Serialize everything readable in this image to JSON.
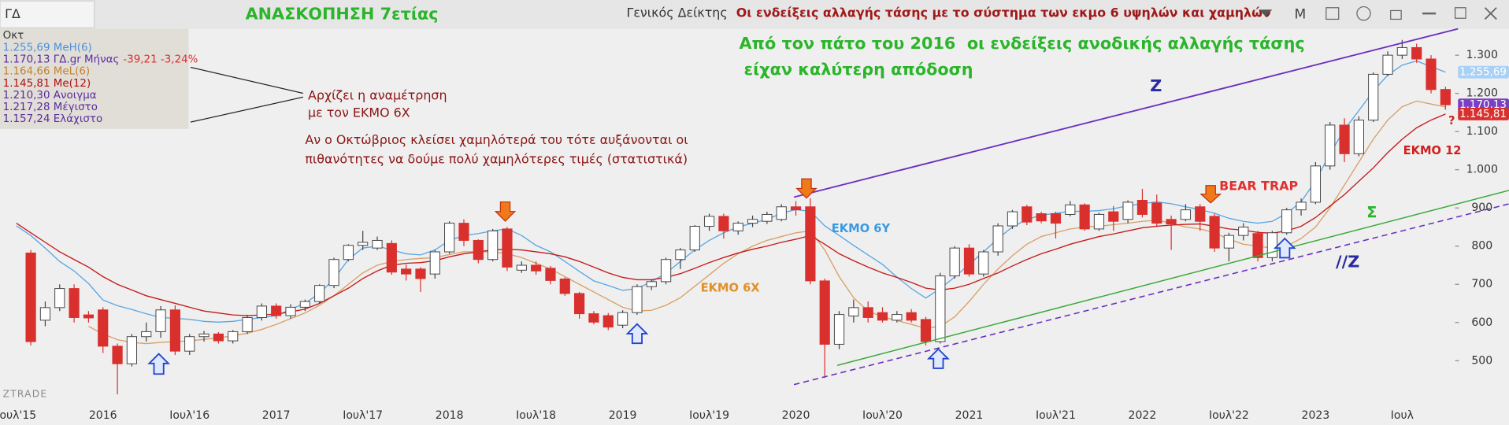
{
  "toolbar": {
    "symbol": "ΓΔ",
    "title": "ΑΝΑΣΚΟΠΗΣΗ 7ετίας",
    "index_name": "Γενικός Δείκτης",
    "subtitle": "Οι ενδείξεις αλλαγής τάσης με το σύστημα των εκμο 6 υψηλών και χαμηλών",
    "mode": "M"
  },
  "chart_data": {
    "type": "candlestick",
    "categories": [
      "Ιουλ'15",
      null,
      null,
      null,
      null,
      null,
      "2016",
      null,
      null,
      null,
      null,
      null,
      "Ιουλ'16",
      null,
      null,
      null,
      null,
      null,
      "2017",
      null,
      null,
      null,
      null,
      null,
      "Ιουλ'17",
      null,
      null,
      null,
      null,
      null,
      "2018",
      null,
      null,
      null,
      null,
      null,
      "Ιουλ'18",
      null,
      null,
      null,
      null,
      null,
      "2019",
      null,
      null,
      null,
      null,
      null,
      "Ιουλ'19",
      null,
      null,
      null,
      null,
      null,
      "2020",
      null,
      null,
      null,
      null,
      null,
      "Ιουλ'20",
      null,
      null,
      null,
      null,
      null,
      "2021",
      null,
      null,
      null,
      null,
      null,
      "Ιουλ'21",
      null,
      null,
      null,
      null,
      null,
      "2022",
      null,
      null,
      null,
      null,
      null,
      "Ιουλ'22",
      null,
      null,
      null,
      null,
      null,
      "2023",
      null,
      null,
      null,
      null,
      null,
      "Ιουλ",
      null,
      null,
      null
    ],
    "open": [
      null,
      782,
      606,
      639,
      689,
      620,
      633,
      538,
      492,
      563,
      576,
      633,
      525,
      563,
      570,
      552,
      576,
      613,
      643,
      618,
      640,
      655,
      697,
      765,
      802,
      795,
      807,
      740,
      740,
      727,
      785,
      860,
      815,
      765,
      845,
      737,
      750,
      742,
      714,
      676,
      623,
      618,
      593,
      626,
      694,
      707,
      765,
      790,
      852,
      878,
      840,
      860,
      865,
      870,
      903,
      903,
      709,
      543,
      617,
      639,
      626,
      606,
      626,
      608,
      550,
      722,
      795,
      727,
      785,
      853,
      903,
      885,
      885,
      883,
      908,
      845,
      890,
      870,
      920,
      913,
      870,
      870,
      903,
      878,
      795,
      828,
      833,
      770,
      835,
      895,
      915,
      1010,
      1117,
      1042,
      1130,
      1250,
      1300,
      1320,
      1290,
      1210.3
    ],
    "high": [
      null,
      790,
      655,
      700,
      700,
      630,
      640,
      545,
      570,
      600,
      643,
      645,
      570,
      578,
      575,
      580,
      620,
      650,
      650,
      648,
      660,
      700,
      770,
      805,
      840,
      825,
      815,
      752,
      745,
      790,
      865,
      870,
      818,
      845,
      850,
      760,
      760,
      748,
      718,
      680,
      630,
      625,
      632,
      700,
      712,
      770,
      795,
      855,
      885,
      885,
      865,
      880,
      890,
      910,
      918,
      925,
      715,
      630,
      660,
      655,
      640,
      630,
      635,
      615,
      730,
      800,
      805,
      790,
      860,
      895,
      908,
      890,
      890,
      918,
      912,
      888,
      905,
      920,
      950,
      935,
      880,
      910,
      910,
      885,
      835,
      860,
      840,
      840,
      900,
      925,
      1020,
      1125,
      1135,
      1140,
      1255,
      1310,
      1340,
      1330,
      1300,
      1217.28
    ],
    "low": [
      null,
      540,
      590,
      630,
      600,
      600,
      520,
      412,
      485,
      550,
      560,
      515,
      515,
      550,
      545,
      545,
      570,
      605,
      610,
      610,
      630,
      650,
      690,
      760,
      790,
      790,
      725,
      710,
      680,
      715,
      780,
      800,
      755,
      760,
      735,
      730,
      725,
      700,
      670,
      610,
      595,
      580,
      585,
      620,
      685,
      700,
      740,
      785,
      840,
      820,
      830,
      850,
      858,
      865,
      880,
      700,
      455,
      530,
      600,
      600,
      600,
      600,
      600,
      540,
      545,
      715,
      720,
      720,
      775,
      845,
      855,
      860,
      820,
      878,
      840,
      840,
      840,
      860,
      875,
      850,
      790,
      865,
      840,
      785,
      760,
      815,
      760,
      760,
      830,
      880,
      910,
      1000,
      1020,
      1035,
      1125,
      1245,
      1290,
      1280,
      1200,
      1157.24
    ],
    "close": [
      null,
      550,
      639,
      689,
      613,
      612,
      538,
      492,
      563,
      576,
      633,
      525,
      563,
      570,
      552,
      576,
      613,
      643,
      618,
      640,
      655,
      697,
      765,
      802,
      810,
      815,
      732,
      727,
      715,
      785,
      860,
      815,
      765,
      840,
      745,
      750,
      735,
      710,
      676,
      623,
      601,
      588,
      626,
      694,
      707,
      765,
      790,
      852,
      878,
      840,
      860,
      870,
      883,
      903,
      895,
      709,
      543,
      621,
      639,
      613,
      606,
      621,
      606,
      550,
      722,
      795,
      727,
      785,
      853,
      890,
      863,
      866,
      860,
      908,
      845,
      883,
      865,
      915,
      883,
      860,
      858,
      895,
      865,
      795,
      828,
      850,
      770,
      835,
      895,
      915,
      1010,
      1117,
      1042,
      1130,
      1250,
      1300,
      1320,
      1290,
      1210,
      1170.13
    ],
    "up_color": "#ffffff",
    "down_color": "#d9302e",
    "series": [
      {
        "color": "#5aa7e6",
        "values": [
          853,
          828,
          795,
          760,
          735,
          702,
          659,
          644,
          634,
          623,
          613,
          611,
          608,
          603,
          601,
          603,
          608,
          613,
          618,
          634,
          651,
          676,
          714,
          765,
          795,
          800,
          790,
          780,
          777,
          790,
          815,
          828,
          833,
          840,
          845,
          828,
          802,
          785,
          760,
          734,
          709,
          697,
          684,
          689,
          707,
          729,
          760,
          790,
          815,
          835,
          850,
          860,
          870,
          886,
          896,
          891,
          853,
          828,
          802,
          777,
          752,
          719,
          689,
          664,
          689,
          719,
          752,
          785,
          820,
          850,
          870,
          881,
          886,
          891,
          891,
          893,
          898,
          906,
          911,
          916,
          911,
          903,
          896,
          886,
          873,
          865,
          860,
          865,
          886,
          916,
          971,
          1042,
          1105,
          1155,
          1206,
          1248,
          1274,
          1285,
          1270,
          1255.69
        ]
      },
      {
        "color": "#d9a066",
        "values": [
          null,
          null,
          null,
          null,
          null,
          590,
          570,
          555,
          548,
          545,
          548,
          550,
          552,
          556,
          560,
          565,
          572,
          582,
          595,
          610,
          625,
          645,
          670,
          700,
          730,
          750,
          760,
          765,
          768,
          770,
          778,
          785,
          785,
          785,
          780,
          770,
          755,
          740,
          720,
          700,
          680,
          660,
          640,
          630,
          632,
          645,
          665,
          695,
          725,
          755,
          780,
          800,
          815,
          825,
          835,
          840,
          790,
          720,
          665,
          630,
          615,
          605,
          595,
          585,
          590,
          615,
          655,
          700,
          740,
          775,
          805,
          825,
          835,
          845,
          850,
          852,
          856,
          860,
          865,
          868,
          860,
          850,
          845,
          835,
          818,
          805,
          800,
          795,
          800,
          820,
          850,
          900,
          960,
          1020,
          1080,
          1130,
          1165,
          1180,
          1172,
          1164.66
        ]
      },
      {
        "color": "#c41a1a",
        "values": [
          860,
          835,
          810,
          785,
          765,
          745,
          720,
          700,
          685,
          670,
          660,
          650,
          640,
          630,
          625,
          620,
          618,
          620,
          622,
          628,
          635,
          650,
          670,
          690,
          715,
          735,
          750,
          755,
          757,
          762,
          772,
          780,
          785,
          790,
          792,
          790,
          785,
          780,
          772,
          760,
          745,
          730,
          718,
          712,
          712,
          718,
          728,
          742,
          757,
          770,
          782,
          792,
          800,
          810,
          818,
          828,
          805,
          780,
          762,
          745,
          730,
          718,
          705,
          690,
          685,
          690,
          700,
          715,
          730,
          748,
          765,
          780,
          792,
          805,
          815,
          825,
          832,
          840,
          848,
          852,
          855,
          857,
          858,
          852,
          845,
          842,
          836,
          834,
          840,
          852,
          875,
          905,
          935,
          970,
          1005,
          1045,
          1080,
          1110,
          1130,
          1145.81
        ]
      }
    ],
    "ylim": [
      387,
      1369
    ],
    "yticks": [
      {
        "value": 1300,
        "label": "1.300"
      },
      {
        "value": 1200,
        "label": "1.200"
      },
      {
        "value": 1100,
        "label": "1.100"
      },
      {
        "value": 1000,
        "label": "1.000"
      },
      900,
      800,
      700,
      600,
      500
    ],
    "grid": false,
    "price_tags": [
      {
        "value": 1255.69,
        "label": "1.255,69",
        "color": "#a9d1f5"
      },
      {
        "value": 1170.13,
        "label": "1.170,13",
        "color": "#7b3fc4"
      },
      {
        "value": 1145.81,
        "label": "1.145,81",
        "color": "#d9302e"
      }
    ],
    "legend_rows": [
      [
        {
          "text": "Οκτ",
          "color": "#333333"
        }
      ],
      [
        {
          "text": "1.255,69 MeH(6)",
          "color": "#4a90d9"
        }
      ],
      [
        {
          "text": "1.170,13 ΓΔ.gr Μήνας",
          "color": "#5b2c9f"
        },
        {
          "text": "-39,21 -3,24%",
          "color": "#d9302e"
        }
      ],
      [
        {
          "text": "1.164,66 MeL(6)",
          "color": "#c8802a"
        }
      ],
      [
        {
          "text": "1.145,81 Me(12)",
          "color": "#b01010"
        }
      ],
      [
        {
          "text": "1.210,30 Ανοιγμα",
          "color": "#5b2c9f"
        }
      ],
      [
        {
          "text": "1.217,28 Μέγιστο",
          "color": "#5b2c9f"
        }
      ],
      [
        {
          "text": "1.157,24 Ελάχιστο",
          "color": "#5b2c9f"
        }
      ]
    ],
    "annotations": [
      "Από τον πάτο του 2016  οι ενδείξεις ανοδικής αλλαγής τάσης",
      "είχαν καλύτερη απόδοση",
      "Αρχίζει η αναμέτρηση",
      "με τον ΕΚΜΟ 6Χ",
      "Αν ο Οκτώβριος κλείσει χαμηλότερά του τότε αυξάνονται οι",
      "πιθανότητες να δούμε πολύ χαμηλότερες τιμές (στατιστικά)",
      "Z",
      "//Z",
      "Σ",
      "BEAR TRAP",
      "ΕΚΜΟ 6Υ",
      "ΕΚΜΟ 6Χ",
      "ΕΚΜΟ 12",
      "?"
    ],
    "watermark": "ZTRADE"
  }
}
